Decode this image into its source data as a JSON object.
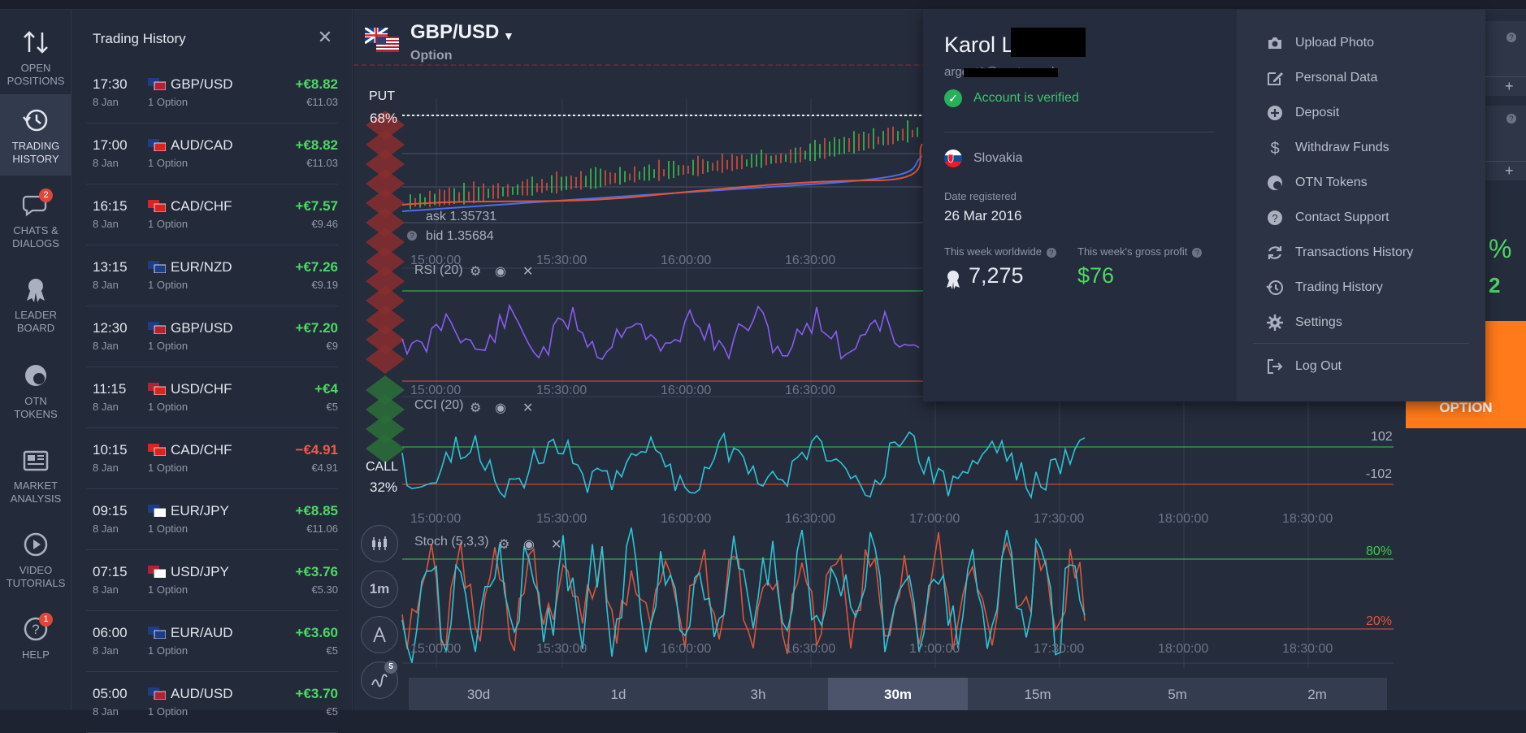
{
  "nav": {
    "items": [
      {
        "label": "OPEN\nPOSITIONS",
        "line1": "OPEN",
        "line2": "POSITIONS"
      },
      {
        "label": "TRADING\nHISTORY",
        "line1": "TRADING",
        "line2": "HISTORY"
      },
      {
        "line1": "CHATS &",
        "line2": "DIALOGS",
        "badge": "2"
      },
      {
        "line1": "LEADER",
        "line2": "BOARD"
      },
      {
        "line1": "OTN",
        "line2": "TOKENS"
      },
      {
        "line1": "MARKET",
        "line2": "ANALYSIS"
      },
      {
        "line1": "VIDEO",
        "line2": "TUTORIALS"
      },
      {
        "line1": "HELP",
        "line2": "",
        "badge": "1"
      }
    ]
  },
  "history": {
    "title": "Trading History",
    "close": "✕",
    "rows": [
      {
        "time": "17:30",
        "date": "8 Jan",
        "pair": "GBP/USD",
        "sub": "1 Option",
        "profit": "+€8.82",
        "invest": "€11.03",
        "neg": false
      },
      {
        "time": "17:00",
        "date": "8 Jan",
        "pair": "AUD/CAD",
        "sub": "1 Option",
        "profit": "+€8.82",
        "invest": "€11.03",
        "neg": false
      },
      {
        "time": "16:15",
        "date": "8 Jan",
        "pair": "CAD/CHF",
        "sub": "1 Option",
        "profit": "+€7.57",
        "invest": "€9.46",
        "neg": false
      },
      {
        "time": "13:15",
        "date": "8 Jan",
        "pair": "EUR/NZD",
        "sub": "1 Option",
        "profit": "+€7.26",
        "invest": "€9.19",
        "neg": false
      },
      {
        "time": "12:30",
        "date": "8 Jan",
        "pair": "GBP/USD",
        "sub": "1 Option",
        "profit": "+€7.20",
        "invest": "€9",
        "neg": false
      },
      {
        "time": "11:15",
        "date": "8 Jan",
        "pair": "USD/CHF",
        "sub": "1 Option",
        "profit": "+€4",
        "invest": "€5",
        "neg": false
      },
      {
        "time": "10:15",
        "date": "8 Jan",
        "pair": "CAD/CHF",
        "sub": "1 Option",
        "profit": "−€4.91",
        "invest": "€4.91",
        "neg": true
      },
      {
        "time": "09:15",
        "date": "8 Jan",
        "pair": "EUR/JPY",
        "sub": "1 Option",
        "profit": "+€8.85",
        "invest": "€11.06",
        "neg": false
      },
      {
        "time": "07:15",
        "date": "8 Jan",
        "pair": "USD/JPY",
        "sub": "1 Option",
        "profit": "+€3.76",
        "invest": "€5.30",
        "neg": false
      },
      {
        "time": "06:00",
        "date": "8 Jan",
        "pair": "EUR/AUD",
        "sub": "1 Option",
        "profit": "+€3.60",
        "invest": "€5",
        "neg": false
      },
      {
        "time": "05:00",
        "date": "8 Jan",
        "pair": "AUD/USD",
        "sub": "1 Option",
        "profit": "+€3.70",
        "invest": "€5",
        "neg": false
      }
    ]
  },
  "chart": {
    "pair": "GBP/USD",
    "caret": "▼",
    "type": "Option",
    "put_label": "PUT",
    "put_pct": "68%",
    "call_label": "CALL",
    "call_pct": "32%",
    "ask": "ask 1.35731",
    "bid": "bid 1.35684",
    "rsi_title": "RSI (20)",
    "cci_title": "CCI (20)",
    "stoch_title": "Stoch (5,3,3)",
    "cci_upper": "102",
    "cci_lower": "-102",
    "stoch_upper": "80%",
    "stoch_lower": "20%",
    "tool_interval": "1m",
    "tool_count_badge": "5",
    "time_labels_main": [
      "15:00:00",
      "15:30:00",
      "16:00:00",
      "16:30:00"
    ],
    "time_labels_full": [
      "15:00:00",
      "15:30:00",
      "16:00:00",
      "16:30:00",
      "17:00:00",
      "17:30:00",
      "18:00:00",
      "18:30:00"
    ],
    "timeframes": [
      "30d",
      "1d",
      "3h",
      "30m",
      "15m",
      "5m",
      "2m"
    ],
    "active_timeframe": "30m",
    "colors": {
      "rsi": "#8a5cf0",
      "cci": "#2ec3d6",
      "stoch_k": "#2ec3d6",
      "stoch_d": "#d9553c",
      "up": "#3cc94e",
      "down": "#e2533c"
    }
  },
  "profile": {
    "name": "Karol L",
    "email": "argent1@centrum.sk",
    "verified": "Account is verified",
    "country": "Slovakia",
    "date_registered_label": "Date registered",
    "date_registered": "26 Mar 2016",
    "worldwide_label": "This week worldwide",
    "worldwide_rank": "7,275",
    "gross_label": "This week's gross profit",
    "gross_value": "$76",
    "menu": [
      {
        "label": "Upload Photo",
        "icon": "camera-icon"
      },
      {
        "label": "Personal Data",
        "icon": "edit-icon"
      },
      {
        "label": "Deposit",
        "icon": "plus-circle-icon"
      },
      {
        "label": "Withdraw Funds",
        "icon": "dollar-icon"
      },
      {
        "label": "OTN Tokens",
        "icon": "otn-icon"
      },
      {
        "label": "Contact Support",
        "icon": "help-circle-icon"
      },
      {
        "label": "Transactions History",
        "icon": "refresh-icon"
      },
      {
        "label": "Trading History",
        "icon": "history-icon"
      },
      {
        "label": "Settings",
        "icon": "gear-icon"
      }
    ],
    "logout": "Log Out"
  },
  "right": {
    "option_label": "OPTION",
    "percent_fragment": "%",
    "digit_fragment": "2"
  }
}
